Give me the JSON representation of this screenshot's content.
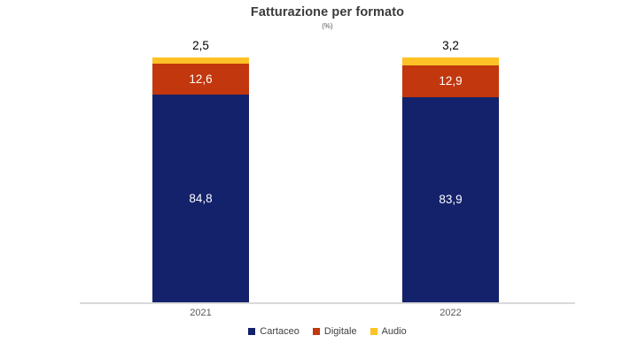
{
  "chart_data": {
    "type": "bar",
    "variant": "stacked-column",
    "title": "Fatturazione per formato",
    "subtitle": "(%)",
    "categories": [
      "2021",
      "2022"
    ],
    "series": [
      {
        "name": "Cartaceo",
        "color": "#14216b",
        "values": [
          84.8,
          83.9
        ],
        "labels": [
          "84,8",
          "83,9"
        ],
        "label_color": "#ffffff",
        "label_position": "inside"
      },
      {
        "name": "Digitale",
        "color": "#c2370d",
        "values": [
          12.6,
          12.9
        ],
        "labels": [
          "12,6",
          "12,9"
        ],
        "label_color": "#ffffff",
        "label_position": "inside"
      },
      {
        "name": "Audio",
        "color": "#ffc226",
        "values": [
          2.5,
          3.2
        ],
        "labels": [
          "2,5",
          "3,2"
        ],
        "label_color": "#000000",
        "label_position": "above"
      }
    ],
    "ylim": [
      0,
      100
    ],
    "grid": false,
    "legend_position": "bottom",
    "axis_line_color": "#d9d9d9"
  }
}
